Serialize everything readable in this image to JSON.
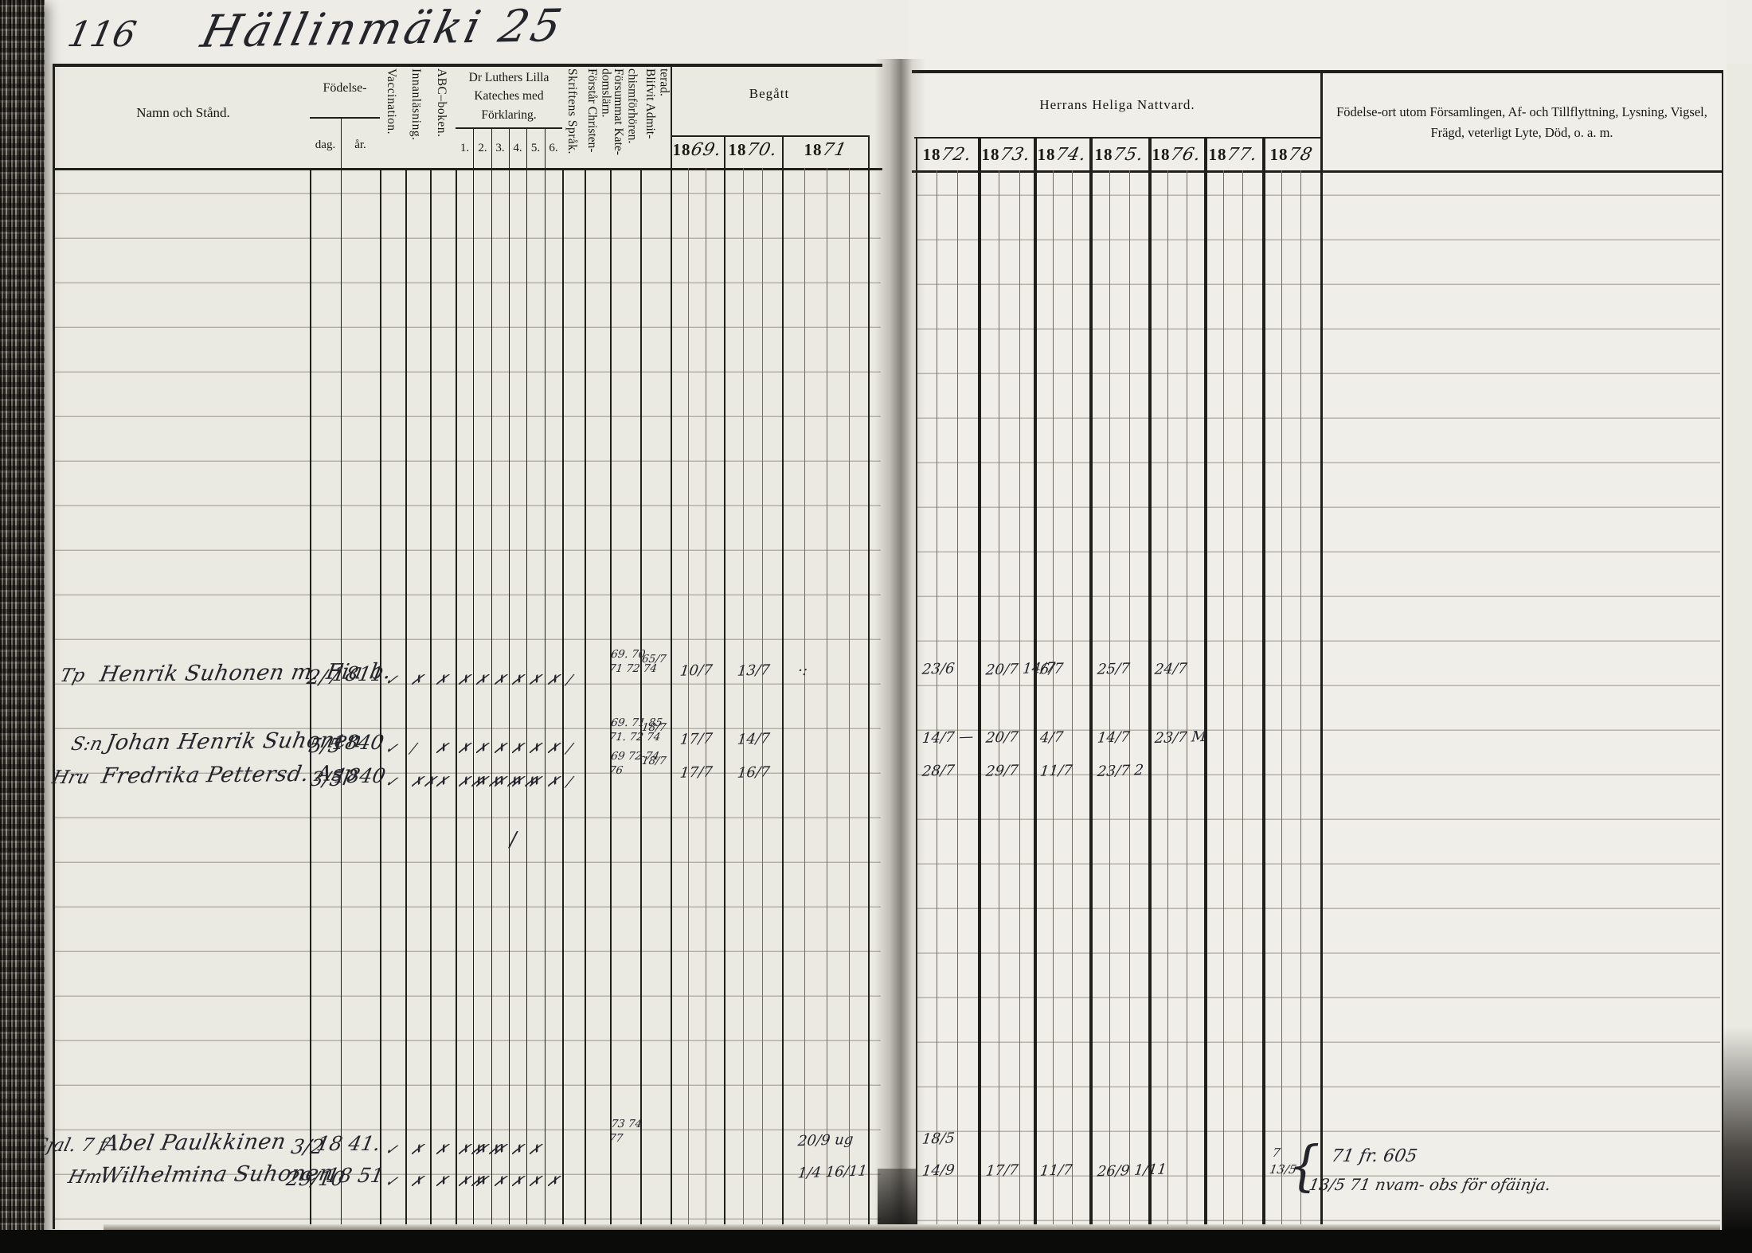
{
  "page": {
    "number": "116",
    "title": "Hällinmäki 25"
  },
  "header": {
    "namn": "Namn och Stånd.",
    "fodelse": "Födelse-",
    "dag": "dag.",
    "ar": "år.",
    "vaccination": "Vaccination.",
    "innanlasning": "Innanläsning.",
    "abc_boken": "ABC–boken.",
    "kateches": "Dr Luthers Lilla\nKateches med\nFörklaring.",
    "kateches_cols": [
      "1.",
      "2.",
      "3.",
      "4.",
      "5.",
      "6."
    ],
    "skriftens_sprak": "Skriftens Språk.",
    "forstar": "Förstår Christen-\ndomslärn.",
    "forsummat": "Försummat Kate-\nchismförhören.",
    "blifvit": "Blifvit Admit-\nterad.",
    "begatt": "Begått",
    "nattvard": "Herrans Heliga Nattvard.",
    "notes": "Födelse-ort utom Församlingen, Af- och Tillflyttning, Lysning, Vigsel,\nFrägd, veterligt Lyte, Död, o. a. m.",
    "year_prefix": "18",
    "begatt_years": [
      "69.",
      "70.",
      "71"
    ],
    "nattvard_years": [
      "72.",
      "73.",
      "74.",
      "75.",
      "76.",
      "77.",
      "78"
    ]
  },
  "rows": [
    {
      "prefix": "Tp",
      "name": "Henrik Suhonen m. Fia b.",
      "birth_day": "2/7",
      "birth_year": "1811",
      "marks": [
        "✓",
        "✗",
        "✗",
        "✗",
        "✗",
        "✗",
        "✗",
        "✗",
        "✗",
        "∕"
      ],
      "forsummat": "69. 70\n71 72 74",
      "blifvit": "65/7",
      "begatt": [
        "10/7",
        "13/7",
        "·:"
      ],
      "nattvard": [
        "23/6",
        "20/7 14/7",
        "6/7",
        "25/7",
        "24/7",
        "",
        ""
      ],
      "note": ""
    },
    {
      "prefix": "S:n",
      "name": "Johan Henrik Suhonen",
      "birth_day": "5/5",
      "birth_year": "1840",
      "marks": [
        "✓",
        "∕",
        "✗",
        "✗",
        "✗",
        "✗",
        "✗",
        "✗",
        "✗",
        "∕"
      ],
      "forsummat": "69. 71 85\n71. 72 74",
      "blifvit": "18/7",
      "begatt": [
        "17/7",
        "14/7",
        ""
      ],
      "nattvard": [
        "14/7 —",
        "20/7",
        "4/7",
        "14/7",
        "23/7 M",
        "",
        ""
      ],
      "note": ""
    },
    {
      "prefix": "Hru",
      "name": "Fredrika Pettersd. Asp",
      "birth_day": "3/5",
      "birth_year": "1840",
      "marks": [
        "✓",
        "✗✗",
        "✗",
        "✗✗",
        "✗✗",
        "✗✗",
        "✗✗",
        "✗",
        "✗",
        "∕"
      ],
      "forsummat": "69 72-74\n76",
      "blifvit": "18/7",
      "begatt": [
        "17/7",
        "16/7",
        ""
      ],
      "nattvard": [
        "28/7",
        "29/7",
        "11/7",
        "23/7 2",
        "",
        "",
        ""
      ],
      "note": ""
    },
    {
      "prefix": "Sjal. 7 f",
      "name": "Abel Paulkkinen",
      "birth_day": "3/2",
      "birth_year": "18 41.",
      "marks": [
        "✓",
        "✗",
        "✗",
        "✗✗",
        "✗✗",
        "✗",
        "✗",
        "✗",
        "",
        ""
      ],
      "forsummat": "73 74\n77",
      "blifvit": "",
      "begatt": [
        "",
        "",
        "20/9 ug"
      ],
      "nattvard": [
        "18/5",
        "",
        "",
        "",
        "",
        "",
        ""
      ],
      "note": ""
    },
    {
      "prefix": "Hm",
      "name": "Wilhelmina Suhonen",
      "birth_day": "29/10",
      "birth_year": "18 51",
      "marks": [
        "✓",
        "✗",
        "✗",
        "✗✗",
        "✗",
        "✗",
        "✗",
        "✗",
        "✗",
        ""
      ],
      "forsummat": "",
      "blifvit": "",
      "begatt": [
        "",
        "",
        "1/4 16/11"
      ],
      "nattvard": [
        "14/9",
        "17/7",
        "11/7",
        "26/9 1/11",
        "",
        "",
        ""
      ],
      "note": ""
    }
  ],
  "annotations": {
    "right_note_line1": "71 fr. 605",
    "right_note_line2": "13/5 71 nvam- obs för ofäinja.",
    "pre_note": "7\n13/5",
    "brace": "{",
    "binding_mark": "v",
    "stray_slash": "∕"
  }
}
